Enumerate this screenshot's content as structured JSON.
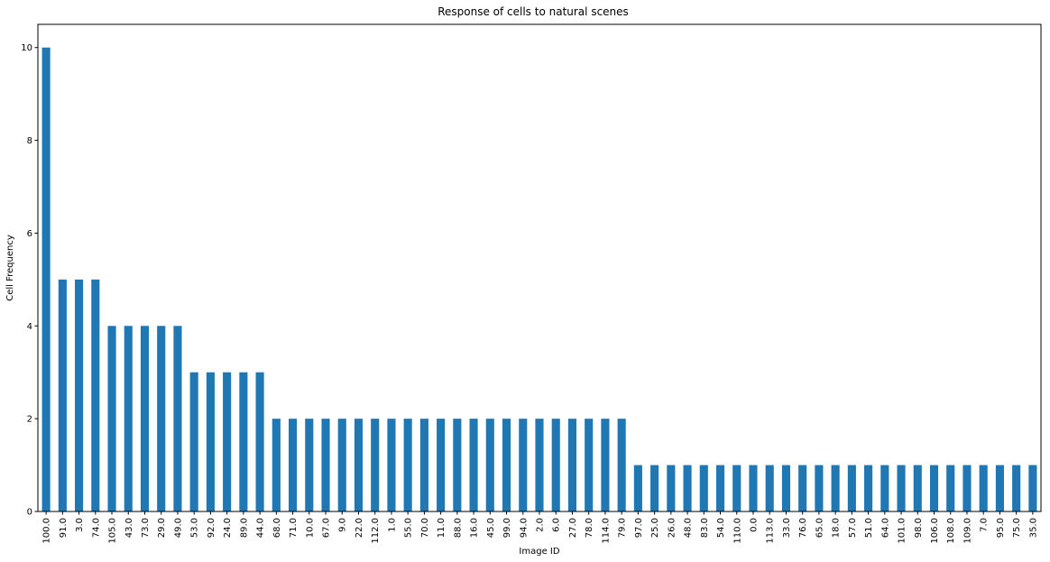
{
  "chart_data": {
    "type": "bar",
    "title": "Response of cells to natural scenes",
    "xlabel": "Image ID",
    "ylabel": "Cell Frequency",
    "ylim": [
      0,
      10.5
    ],
    "yticks": [
      "0",
      "2",
      "4",
      "6",
      "8",
      "10"
    ],
    "grid": false,
    "color": "#1f77b4",
    "categories": [
      "100.0",
      "91.0",
      "3.0",
      "74.0",
      "105.0",
      "43.0",
      "73.0",
      "29.0",
      "49.0",
      "53.0",
      "92.0",
      "24.0",
      "89.0",
      "44.0",
      "68.0",
      "71.0",
      "10.0",
      "67.0",
      "9.0",
      "22.0",
      "112.0",
      "1.0",
      "55.0",
      "70.0",
      "11.0",
      "88.0",
      "16.0",
      "45.0",
      "99.0",
      "94.0",
      "2.0",
      "6.0",
      "27.0",
      "78.0",
      "114.0",
      "79.0",
      "97.0",
      "25.0",
      "26.0",
      "48.0",
      "83.0",
      "54.0",
      "110.0",
      "0.0",
      "113.0",
      "33.0",
      "76.0",
      "65.0",
      "18.0",
      "57.0",
      "51.0",
      "64.0",
      "101.0",
      "98.0",
      "106.0",
      "108.0",
      "109.0",
      "7.0",
      "95.0",
      "75.0",
      "35.0"
    ],
    "values": [
      10,
      5,
      5,
      5,
      4,
      4,
      4,
      4,
      4,
      3,
      3,
      3,
      3,
      3,
      2,
      2,
      2,
      2,
      2,
      2,
      2,
      2,
      2,
      2,
      2,
      2,
      2,
      2,
      2,
      2,
      2,
      2,
      2,
      2,
      2,
      2,
      1,
      1,
      1,
      1,
      1,
      1,
      1,
      1,
      1,
      1,
      1,
      1,
      1,
      1,
      1,
      1,
      1,
      1,
      1,
      1,
      1,
      1,
      1,
      1,
      1
    ]
  }
}
